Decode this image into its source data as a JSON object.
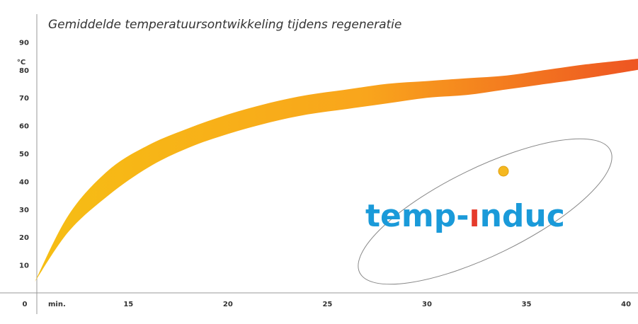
{
  "chart_data": {
    "type": "area",
    "title": "Gemiddelde temperatuursontwikkeling tijdens regeneratie",
    "ylabel": "°C",
    "xlabel": "min.",
    "origin_label": "0",
    "x_ticks": [
      15,
      20,
      25,
      30,
      35,
      40
    ],
    "y_ticks": [
      10,
      20,
      30,
      40,
      50,
      60,
      70,
      80,
      90
    ],
    "xlim": [
      10.4,
      40.6
    ],
    "ylim": [
      0,
      100
    ],
    "grid": false,
    "legend": "none",
    "series": [
      {
        "x": [
          10.3,
          12,
          14,
          16,
          18,
          20,
          22,
          24,
          26,
          28,
          30,
          32,
          34,
          36,
          38,
          40.6
        ],
        "upper": [
          4,
          28,
          44,
          53,
          59,
          64,
          68,
          71,
          73,
          75,
          76,
          77,
          78,
          80,
          82,
          84
        ],
        "lower": [
          4,
          22,
          35,
          45,
          52,
          57,
          61,
          64,
          66,
          68,
          70,
          71,
          73,
          75,
          77,
          80
        ]
      }
    ],
    "colors": {
      "gradient_start": "#f6be14",
      "gradient_mid": "#f9a51c",
      "gradient_end": "#ee5522",
      "axis": "#999999",
      "text": "#333333"
    }
  },
  "logo": {
    "part1": "temp-",
    "part2": "ı",
    "part3": "nduc",
    "color_main": "#1a9ad9",
    "color_accent": "#e53b2c",
    "dot_color": "#f5b820"
  }
}
